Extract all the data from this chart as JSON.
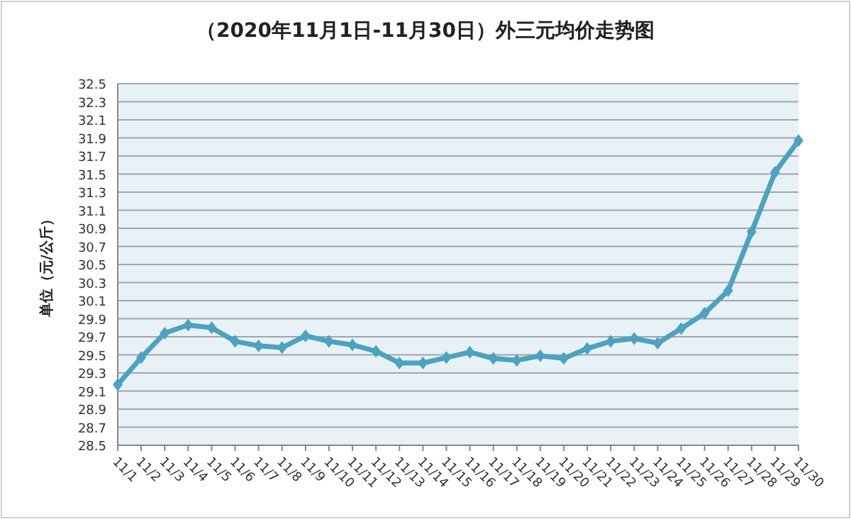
{
  "chart_data": {
    "type": "line",
    "title": "（2020年11月1日-11月30日）外三元均价走势图",
    "ylabel": "单位（元/公斤）",
    "categories": [
      "11/1",
      "11/2",
      "11/3",
      "11/4",
      "11/5",
      "11/6",
      "11/7",
      "11/8",
      "11/9",
      "11/10",
      "11/11",
      "11/12",
      "11/13",
      "11/14",
      "11/15",
      "11/16",
      "11/17",
      "11/18",
      "11/19",
      "11/20",
      "11/21",
      "11/22",
      "11/23",
      "11/24",
      "11/25",
      "11/26",
      "11/27",
      "11/28",
      "11/29",
      "11/30"
    ],
    "series": [
      {
        "color": "#4aa3c0",
        "values": [
          29.17,
          29.47,
          29.74,
          29.83,
          29.8,
          29.65,
          29.6,
          29.58,
          29.71,
          29.65,
          29.61,
          29.54,
          29.41,
          29.41,
          29.47,
          29.53,
          29.46,
          29.44,
          29.49,
          29.46,
          29.57,
          29.65,
          29.68,
          29.63,
          29.79,
          29.96,
          30.21,
          30.86,
          31.52,
          31.87
        ]
      }
    ],
    "ylim": [
      28.5,
      32.5
    ],
    "yticks": [
      28.5,
      28.7,
      28.9,
      29.1,
      29.3,
      29.5,
      29.7,
      29.9,
      30.1,
      30.3,
      30.5,
      30.7,
      30.9,
      31.1,
      31.3,
      31.5,
      31.7,
      31.9,
      32.1,
      32.3,
      32.5
    ],
    "grid": "y",
    "marker": "diamond",
    "line_style": "solid"
  }
}
